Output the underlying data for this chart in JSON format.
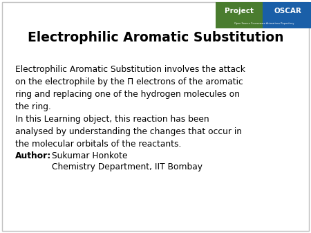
{
  "title": "Electrophilic Aromatic Substitution",
  "body_text": "Electrophilic Aromatic Substitution involves the attack\non the electrophile by the Π electrons of the aromatic\nring and replacing one of the hydrogen molecules on\nthe ring.\nIn this Learning object, this reaction has been\nanalysed by understanding the changes that occur in\nthe molecular orbitals of the reactants.",
  "author_label": "Author:",
  "author_name": "Sukumar Honkote",
  "author_affil": "Chemistry Department, IIT Bombay",
  "bg_color": "#ffffff",
  "border_color": "#c0c0c0",
  "text_color": "#000000",
  "title_fontsize": 13.5,
  "body_fontsize": 8.8,
  "author_fontsize": 8.8,
  "logo_project_bg": "#4a7c2f",
  "logo_oscar_bg": "#1a5fa8",
  "logo_project_text": "Project",
  "logo_oscar_text": "OSCAR",
  "logo_sub_text": "Open Source Courseware Animations Repository"
}
